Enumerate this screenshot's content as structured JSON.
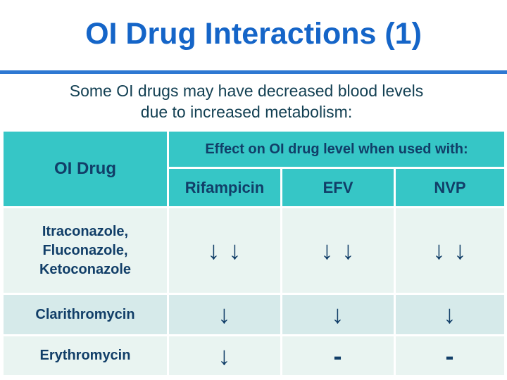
{
  "slide": {
    "title": "OI Drug Interactions (1)",
    "subtitle": "Some OI drugs may have decreased blood levels\ndue to increased metabolism:"
  },
  "table": {
    "corner_header": "OI Drug",
    "effect_header": "Effect on OI drug level when used with:",
    "columns": [
      "Rifampicin",
      "EFV",
      "NVP"
    ],
    "rows": [
      {
        "drug": "Itraconazole,\nFluconazole,\nKetoconazole",
        "cells": [
          "↓ ↓",
          "↓ ↓",
          "↓ ↓"
        ]
      },
      {
        "drug": "Clarithromycin",
        "cells": [
          "↓",
          "↓",
          "↓"
        ]
      },
      {
        "drug": "Erythromycin",
        "cells": [
          "↓",
          "-",
          "-"
        ]
      }
    ]
  },
  "colors": {
    "title-blue": "#1565c8",
    "rule-blue": "#2e78d2",
    "header-teal": "#36c6c6",
    "row-light": "#e9f4f1",
    "row-alt": "#d6eaea",
    "text-navy": "#113e68",
    "subtitle-navy": "#123f52"
  }
}
